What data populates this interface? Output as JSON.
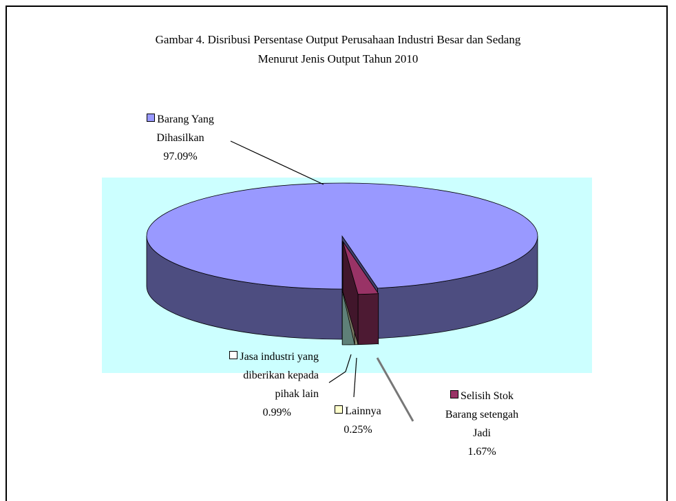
{
  "chart_data": {
    "type": "pie",
    "title": "Gambar 4. Disribusi Persentase Output Perusahaan Industri Besar dan Sedang\nMenurut Jenis Output Tahun 2010",
    "categories": [
      "Barang Yang\nDihasilkan",
      "Jasa industri yang\ndiberikan kepada\npihak lain",
      "Lainnya",
      "Selisih Stok\nBarang setengah\nJadi"
    ],
    "values": [
      97.09,
      0.99,
      0.25,
      1.67
    ],
    "value_labels": [
      "97.09%",
      "0.99%",
      "0.25%",
      "1.67%"
    ],
    "colors": [
      "#9999ff",
      "#ffffff",
      "#ffffcc",
      "#993366"
    ]
  }
}
